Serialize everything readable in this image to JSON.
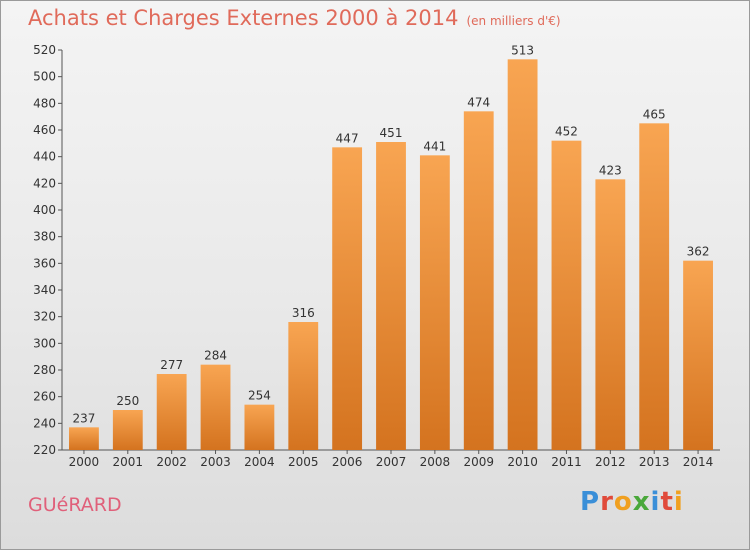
{
  "header": {
    "title": "Achats et Charges Externes 2000 à 2014",
    "unit": "(en milliers d'€)"
  },
  "footer": {
    "town": "GUéRARD",
    "logo": "Proxiti",
    "logo_colors": [
      "#3a8fd8",
      "#e04a3a",
      "#f0a020",
      "#4aa83a",
      "#3a8fd8",
      "#e04a3a",
      "#f0a020"
    ]
  },
  "chart_data": {
    "type": "bar",
    "title": "Achats et Charges Externes 2000 à 2014",
    "subtitle": "(en milliers d'€)",
    "categories": [
      "2000",
      "2001",
      "2002",
      "2003",
      "2004",
      "2005",
      "2006",
      "2007",
      "2008",
      "2009",
      "2010",
      "2011",
      "2012",
      "2013",
      "2014"
    ],
    "values": [
      237,
      250,
      277,
      284,
      254,
      316,
      447,
      451,
      441,
      474,
      513,
      452,
      423,
      465,
      362
    ],
    "ylim": [
      220,
      520
    ],
    "yticks": [
      220,
      240,
      260,
      280,
      300,
      320,
      340,
      360,
      380,
      400,
      420,
      440,
      460,
      480,
      500,
      520
    ],
    "xlabel": "",
    "ylabel": "",
    "grid": false,
    "bar_color": "#f08c30",
    "data_labels": true
  }
}
